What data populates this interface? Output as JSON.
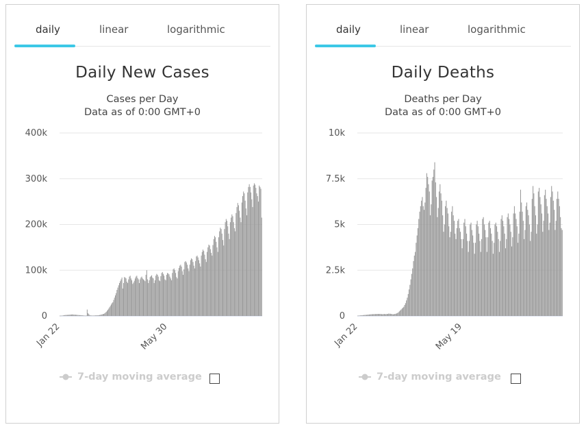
{
  "tabs": [
    "daily",
    "linear",
    "logarithmic"
  ],
  "legend_label": "7-day moving average",
  "colors": {
    "bar": "#999999",
    "tab_indicator": "#3cc8e6",
    "grid": "#e6e6e6",
    "legend": "#cccccc"
  },
  "charts": [
    {
      "id": "cases",
      "title": "Daily New Cases",
      "subtitle": "Cases per Day",
      "subtitle2": "Data as of 0:00 GMT+0",
      "yticks": [
        "400k",
        "300k",
        "200k",
        "100k",
        "0"
      ],
      "xticks": [
        "Jan 22",
        "May 30"
      ]
    },
    {
      "id": "deaths",
      "title": "Daily Deaths",
      "subtitle": "Deaths per Day",
      "subtitle2": "Data as of 0:00 GMT+0",
      "yticks": [
        "10k",
        "7.5k",
        "5k",
        "2.5k",
        "0"
      ],
      "xticks": [
        "Jan 22",
        "May 19"
      ]
    }
  ],
  "chart_data": [
    {
      "type": "bar",
      "title": "Daily New Cases",
      "subtitle": "Cases per Day",
      "ylim": [
        0,
        400000
      ],
      "yticks": [
        0,
        100000,
        200000,
        300000,
        400000
      ],
      "x_start": "Jan 22",
      "x_tick_labels": [
        "Jan 22",
        "May 30"
      ],
      "grid": true,
      "legend": "bottom",
      "series": [
        {
          "values": [
            580,
            600,
            700,
            900,
            1200,
            1600,
            1900,
            2100,
            2200,
            2300,
            2400,
            2600,
            2800,
            3000,
            3100,
            3300,
            3100,
            2900,
            2700,
            2600,
            2500,
            2300,
            2100,
            1900,
            1800,
            1700,
            1600,
            1500,
            1200,
            800,
            900,
            700,
            900,
            14000,
            6000,
            4000,
            2000,
            1200,
            1000,
            900,
            900,
            1000,
            1100,
            1200,
            1300,
            1400,
            1500,
            1700,
            2000,
            2400,
            3000,
            3500,
            4000,
            4500,
            5500,
            7000,
            9000,
            11000,
            13500,
            16000,
            19000,
            22000,
            25000,
            28000,
            30000,
            35000,
            40000,
            45000,
            50000,
            57000,
            62000,
            67000,
            72000,
            76000,
            80000,
            84000,
            60000,
            72000,
            85000,
            84000,
            82000,
            75000,
            72000,
            80000,
            86000,
            88000,
            82000,
            78000,
            70000,
            73000,
            77000,
            82000,
            86000,
            88000,
            83000,
            80000,
            72000,
            80000,
            84000,
            86000,
            82000,
            80000,
            78000,
            76000,
            90000,
            100000,
            80000,
            72000,
            78000,
            85000,
            87000,
            89000,
            84000,
            82000,
            72000,
            78000,
            88000,
            92000,
            90000,
            86000,
            78000,
            76000,
            87000,
            94000,
            96000,
            92000,
            88000,
            80000,
            78000,
            90000,
            94000,
            93000,
            91000,
            86000,
            82000,
            78000,
            94000,
            102000,
            104000,
            100000,
            94000,
            85000,
            82000,
            98000,
            105000,
            110000,
            112000,
            108000,
            98000,
            90000,
            102000,
            118000,
            120000,
            117000,
            112000,
            104000,
            98000,
            112000,
            122000,
            126000,
            124000,
            118000,
            110000,
            104000,
            120000,
            130000,
            132000,
            128000,
            122000,
            115000,
            108000,
            132000,
            140000,
            145000,
            142000,
            134000,
            124000,
            118000,
            140000,
            150000,
            156000,
            154000,
            146000,
            138000,
            132000,
            155000,
            168000,
            175000,
            172000,
            162000,
            150000,
            140000,
            172000,
            185000,
            193000,
            190000,
            180000,
            166000,
            154000,
            190000,
            205000,
            212000,
            208000,
            196000,
            180000,
            168000,
            205000,
            215000,
            222000,
            218000,
            205000,
            192000,
            185000,
            225000,
            238000,
            247000,
            242000,
            230000,
            215000,
            205000,
            248000,
            262000,
            272000,
            268000,
            252000,
            235000,
            220000,
            270000,
            282000,
            288000,
            282000,
            270000,
            255000,
            238000,
            285000,
            290000,
            287000,
            280000,
            268000,
            262000,
            250000,
            285000,
            282000,
            278000,
            215000
          ]
        }
      ]
    },
    {
      "type": "bar",
      "title": "Daily Deaths",
      "subtitle": "Deaths per Day",
      "ylim": [
        0,
        10000
      ],
      "yticks": [
        0,
        2500,
        5000,
        7500,
        10000
      ],
      "x_start": "Jan 22",
      "x_tick_labels": [
        "Jan 22",
        "May 19"
      ],
      "grid": true,
      "legend": "bottom",
      "series": [
        {
          "values": [
            17,
            20,
            25,
            30,
            35,
            40,
            45,
            50,
            55,
            60,
            60,
            70,
            75,
            80,
            85,
            90,
            95,
            95,
            100,
            100,
            105,
            105,
            110,
            110,
            110,
            110,
            105,
            100,
            95,
            100,
            110,
            100,
            100,
            110,
            110,
            130,
            120,
            120,
            110,
            100,
            90,
            100,
            110,
            120,
            140,
            160,
            200,
            250,
            300,
            350,
            400,
            450,
            500,
            600,
            700,
            850,
            1000,
            1200,
            1450,
            1700,
            2000,
            2300,
            2600,
            3000,
            3300,
            3500,
            4000,
            4400,
            4800,
            5300,
            5700,
            6000,
            6300,
            6500,
            6000,
            5800,
            6200,
            7000,
            7800,
            7600,
            7200,
            6800,
            5500,
            6100,
            7400,
            7600,
            8000,
            8400,
            7300,
            6500,
            5400,
            5900,
            6800,
            7200,
            6700,
            6300,
            5500,
            4600,
            5000,
            6000,
            6300,
            5900,
            5600,
            4900,
            4300,
            4600,
            5700,
            6000,
            5500,
            5200,
            4500,
            4200,
            4800,
            5200,
            5300,
            4800,
            4600,
            4200,
            3700,
            4200,
            5100,
            5300,
            4900,
            4500,
            4100,
            3500,
            4100,
            5000,
            5100,
            4700,
            4400,
            4000,
            3400,
            4000,
            5000,
            5200,
            4900,
            4500,
            4100,
            3500,
            4200,
            5300,
            5400,
            5000,
            4700,
            4300,
            3500,
            4300,
            5100,
            5200,
            4800,
            4500,
            4100,
            3400,
            4000,
            5000,
            5100,
            4900,
            4600,
            4200,
            3500,
            4100,
            5300,
            5500,
            5200,
            4900,
            4500,
            3700,
            4200,
            5400,
            5600,
            5300,
            5000,
            4600,
            3800,
            4300,
            5600,
            6000,
            5600,
            5300,
            4900,
            4000,
            4500,
            5700,
            6900,
            6200,
            5700,
            5200,
            4200,
            4700,
            6000,
            6200,
            5800,
            5500,
            5000,
            4100,
            4600,
            6400,
            7100,
            6700,
            6000,
            5500,
            4500,
            5000,
            6800,
            7000,
            6500,
            6100,
            5600,
            4600,
            5200,
            6600,
            6900,
            6400,
            6000,
            5600,
            4700,
            5100,
            6500,
            7100,
            6800,
            6300,
            5800,
            4700,
            5200,
            6400,
            6800,
            6400,
            6000,
            5400,
            4800,
            4700
          ]
        }
      ]
    }
  ]
}
